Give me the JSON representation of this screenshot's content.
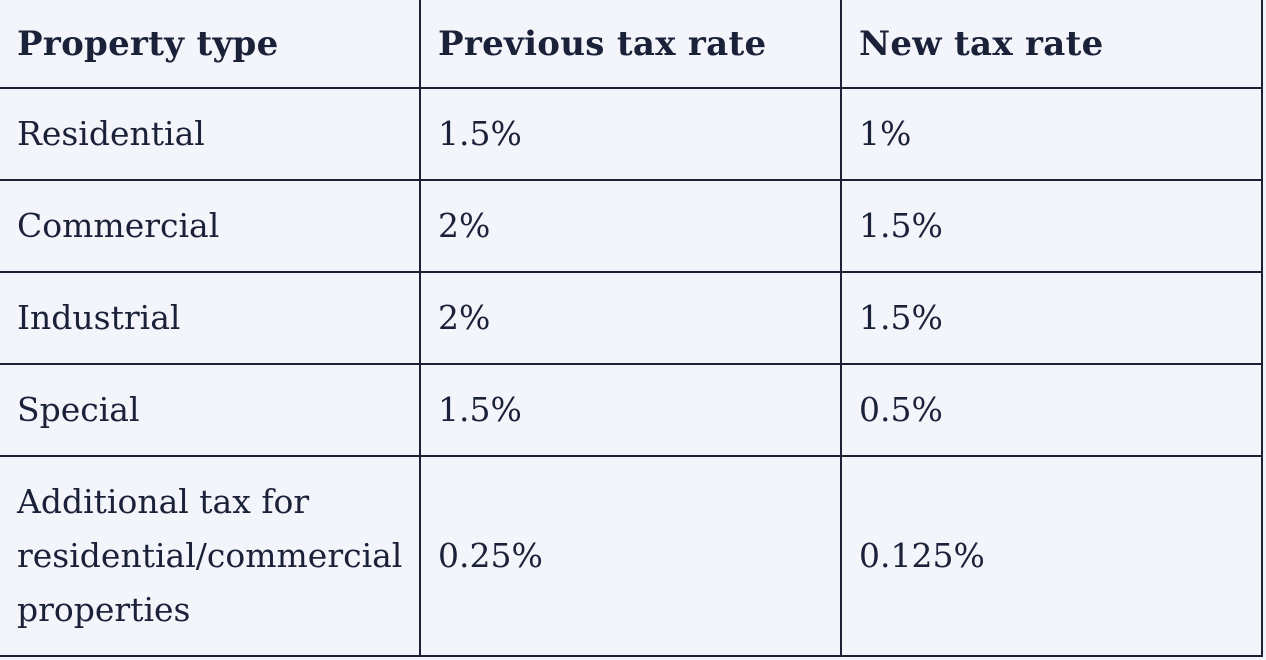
{
  "table": {
    "headers": [
      "Property type",
      "Previous tax rate",
      "New tax rate"
    ],
    "rows": [
      {
        "property_type": "Residential",
        "previous_rate": "1.5%",
        "new_rate": "1%"
      },
      {
        "property_type": "Commercial",
        "previous_rate": "2%",
        "new_rate": "1.5%"
      },
      {
        "property_type": "Industrial",
        "previous_rate": "2%",
        "new_rate": "1.5%"
      },
      {
        "property_type": "Special",
        "previous_rate": "1.5%",
        "new_rate": "0.5%"
      },
      {
        "property_type": "Additional tax for residential/commercial properties",
        "previous_rate": "0.25%",
        "new_rate": "0.125%"
      }
    ]
  }
}
